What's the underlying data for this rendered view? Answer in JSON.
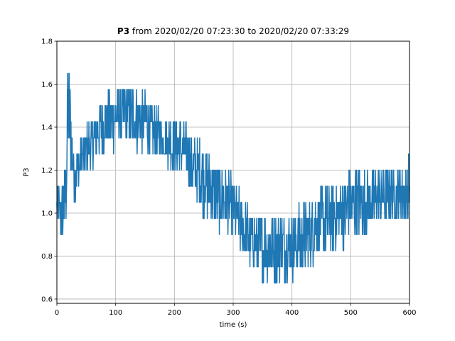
{
  "chart_data": {
    "type": "line",
    "title_bold": "P3",
    "title_rest": " from 2020/02/20 07:23:30 to 2020/02/20 07:33:29",
    "xlabel": "time (s)",
    "ylabel": "P3",
    "xlim": [
      0,
      600
    ],
    "ylim": [
      0.58,
      1.8
    ],
    "xticks": [
      0,
      100,
      200,
      300,
      400,
      500,
      600
    ],
    "yticks": [
      0.6,
      0.8,
      1.0,
      1.2,
      1.4,
      1.6,
      1.8
    ],
    "xtick_labels": [
      "0",
      "100",
      "200",
      "300",
      "400",
      "500",
      "600"
    ],
    "ytick_labels": [
      "0.6",
      "0.8",
      "1.0",
      "1.2",
      "1.4",
      "1.6",
      "1.8"
    ],
    "grid": true,
    "line_color": "#1f77b4",
    "series": [
      {
        "x": [
          0,
          5,
          10,
          15,
          18,
          20,
          23,
          27,
          30,
          35,
          40,
          50,
          60,
          70,
          80,
          90,
          100,
          110,
          120,
          130,
          140,
          150,
          160,
          170,
          180,
          190,
          200,
          210,
          220,
          230,
          240,
          250,
          260,
          270,
          280,
          290,
          300,
          310,
          320,
          330,
          340,
          350,
          360,
          370,
          380,
          390,
          400,
          410,
          420,
          430,
          440,
          450,
          460,
          470,
          480,
          490,
          500,
          510,
          520,
          530,
          540,
          550,
          560,
          570,
          580,
          590,
          600
        ],
        "y_low": [
          0.95,
          0.9,
          0.85,
          0.9,
          1.1,
          1.25,
          1.2,
          1.1,
          1.05,
          1.1,
          1.15,
          1.2,
          1.2,
          1.25,
          1.28,
          1.3,
          1.3,
          1.32,
          1.32,
          1.3,
          1.3,
          1.3,
          1.28,
          1.25,
          1.25,
          1.22,
          1.2,
          1.18,
          1.15,
          1.1,
          1.05,
          1.0,
          0.95,
          0.95,
          0.92,
          0.9,
          0.88,
          0.82,
          0.78,
          0.75,
          0.72,
          0.7,
          0.68,
          0.68,
          0.7,
          0.7,
          0.7,
          0.72,
          0.72,
          0.75,
          0.78,
          0.8,
          0.82,
          0.82,
          0.85,
          0.85,
          0.88,
          0.9,
          0.9,
          0.92,
          0.92,
          0.95,
          0.95,
          0.95,
          0.95,
          0.95,
          0.95
        ],
        "y_high": [
          1.12,
          1.12,
          1.15,
          1.3,
          1.65,
          1.75,
          1.6,
          1.35,
          1.3,
          1.3,
          1.32,
          1.4,
          1.45,
          1.5,
          1.55,
          1.55,
          1.58,
          1.6,
          1.6,
          1.6,
          1.58,
          1.55,
          1.5,
          1.48,
          1.45,
          1.45,
          1.45,
          1.42,
          1.4,
          1.35,
          1.35,
          1.32,
          1.3,
          1.25,
          1.2,
          1.2,
          1.15,
          1.1,
          1.05,
          1.02,
          1.0,
          1.0,
          1.0,
          1.0,
          1.0,
          1.0,
          1.0,
          1.02,
          1.05,
          1.08,
          1.1,
          1.12,
          1.12,
          1.15,
          1.15,
          1.18,
          1.2,
          1.2,
          1.2,
          1.2,
          1.2,
          1.2,
          1.22,
          1.22,
          1.22,
          1.25,
          1.25
        ]
      }
    ]
  }
}
